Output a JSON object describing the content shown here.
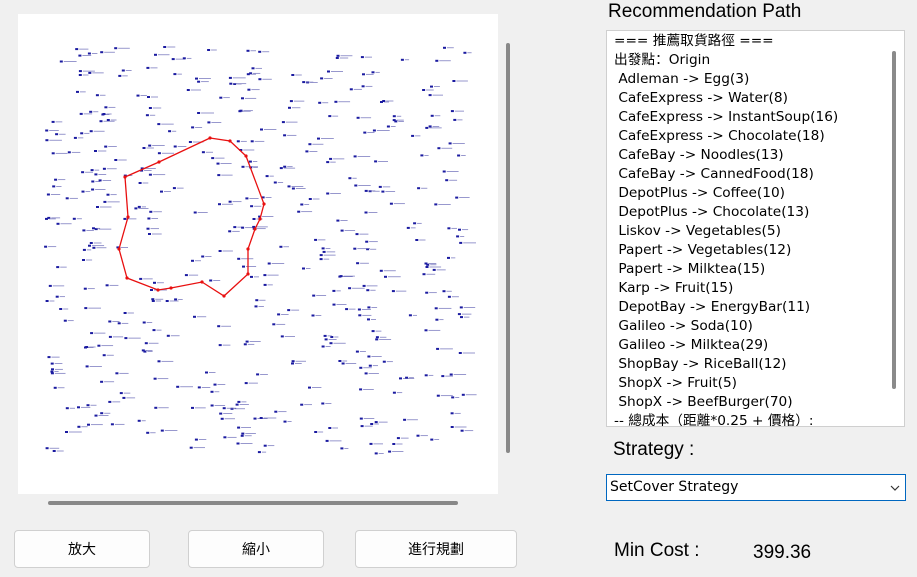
{
  "buttons": {
    "zoom_in": "放大",
    "zoom_out": "縮小",
    "plan": "進行規劃"
  },
  "recommendation": {
    "title": "Recommendation Path",
    "lines": [
      "=== 推薦取貨路徑 ===",
      "出發點：Origin",
      " Adleman -> Egg(3)",
      " CafeExpress -> Water(8)",
      " CafeExpress -> InstantSoup(16)",
      " CafeExpress -> Chocolate(18)",
      " CafeBay -> Noodles(13)",
      " CafeBay -> CannedFood(18)",
      " DepotPlus -> Coffee(10)",
      " DepotPlus -> Chocolate(13)",
      " Liskov -> Vegetables(5)",
      " Papert -> Vegetables(12)",
      " Papert -> Milktea(15)",
      " Karp -> Fruit(15)",
      " DepotBay -> EnergyBar(11)",
      " Galileo -> Soda(10)",
      " Galileo -> Milktea(29)",
      " ShopBay -> RiceBall(12)",
      " ShopX -> Fruit(5)",
      " ShopX -> BeefBurger(70)",
      "-- 總成本（距離*0.25 + 價格）:"
    ]
  },
  "strategy": {
    "label": "Strategy :",
    "selected": "SetCover Strategy"
  },
  "min_cost": {
    "label": "Min Cost :",
    "value": "399.36"
  },
  "map": {
    "route_color": "#e81010",
    "marker_color": "#1a1aa0",
    "background": "#ffffff"
  }
}
